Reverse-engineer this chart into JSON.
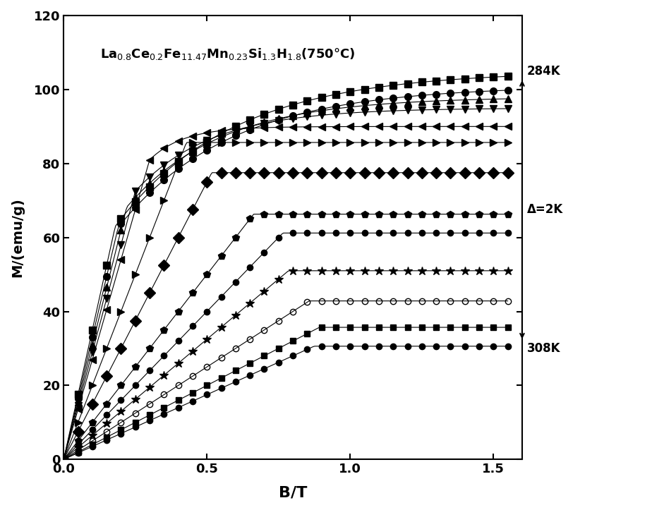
{
  "xlabel": "B/T",
  "ylabel": "M/(emu/g)",
  "xlim": [
    0,
    1.6
  ],
  "ylim": [
    0,
    120
  ],
  "xticks": [
    0.0,
    0.5,
    1.0,
    1.5
  ],
  "yticks": [
    0,
    20,
    40,
    60,
    80,
    100,
    120
  ],
  "temperatures": [
    284,
    286,
    288,
    290,
    292,
    294,
    296,
    298,
    300,
    302,
    304,
    306,
    308
  ],
  "label_top": "284K",
  "label_bottom": "308K",
  "label_delta": "Δ=2K",
  "actual_markers": [
    "s",
    "o",
    "^",
    "v",
    "<",
    ">",
    "D",
    "p",
    "o",
    "*",
    "o",
    "s",
    "o"
  ],
  "fill_styles": [
    "full",
    "full",
    "full",
    "full",
    "full",
    "full",
    "full",
    "full",
    "full",
    "full",
    "none",
    "full",
    "full"
  ],
  "actual_sizes": [
    7,
    7,
    7,
    7,
    7,
    7,
    8,
    7,
    6,
    9,
    6,
    6,
    6
  ],
  "saturation_values": [
    105,
    101,
    98,
    95,
    90,
    84,
    76,
    65,
    60,
    50,
    42,
    35,
    30
  ],
  "initial_slopes": [
    350,
    330,
    310,
    290,
    270,
    200,
    150,
    100,
    80,
    65,
    50,
    40,
    35
  ],
  "transition_fields": [
    0.18,
    0.19,
    0.22,
    0.25,
    0.3,
    0.45,
    0.6,
    0.8,
    0.9,
    1.0,
    1.1,
    1.2,
    1.3
  ],
  "background_color": "#ffffff",
  "fig_width": 9.24,
  "fig_height": 7.23,
  "dpi": 100
}
